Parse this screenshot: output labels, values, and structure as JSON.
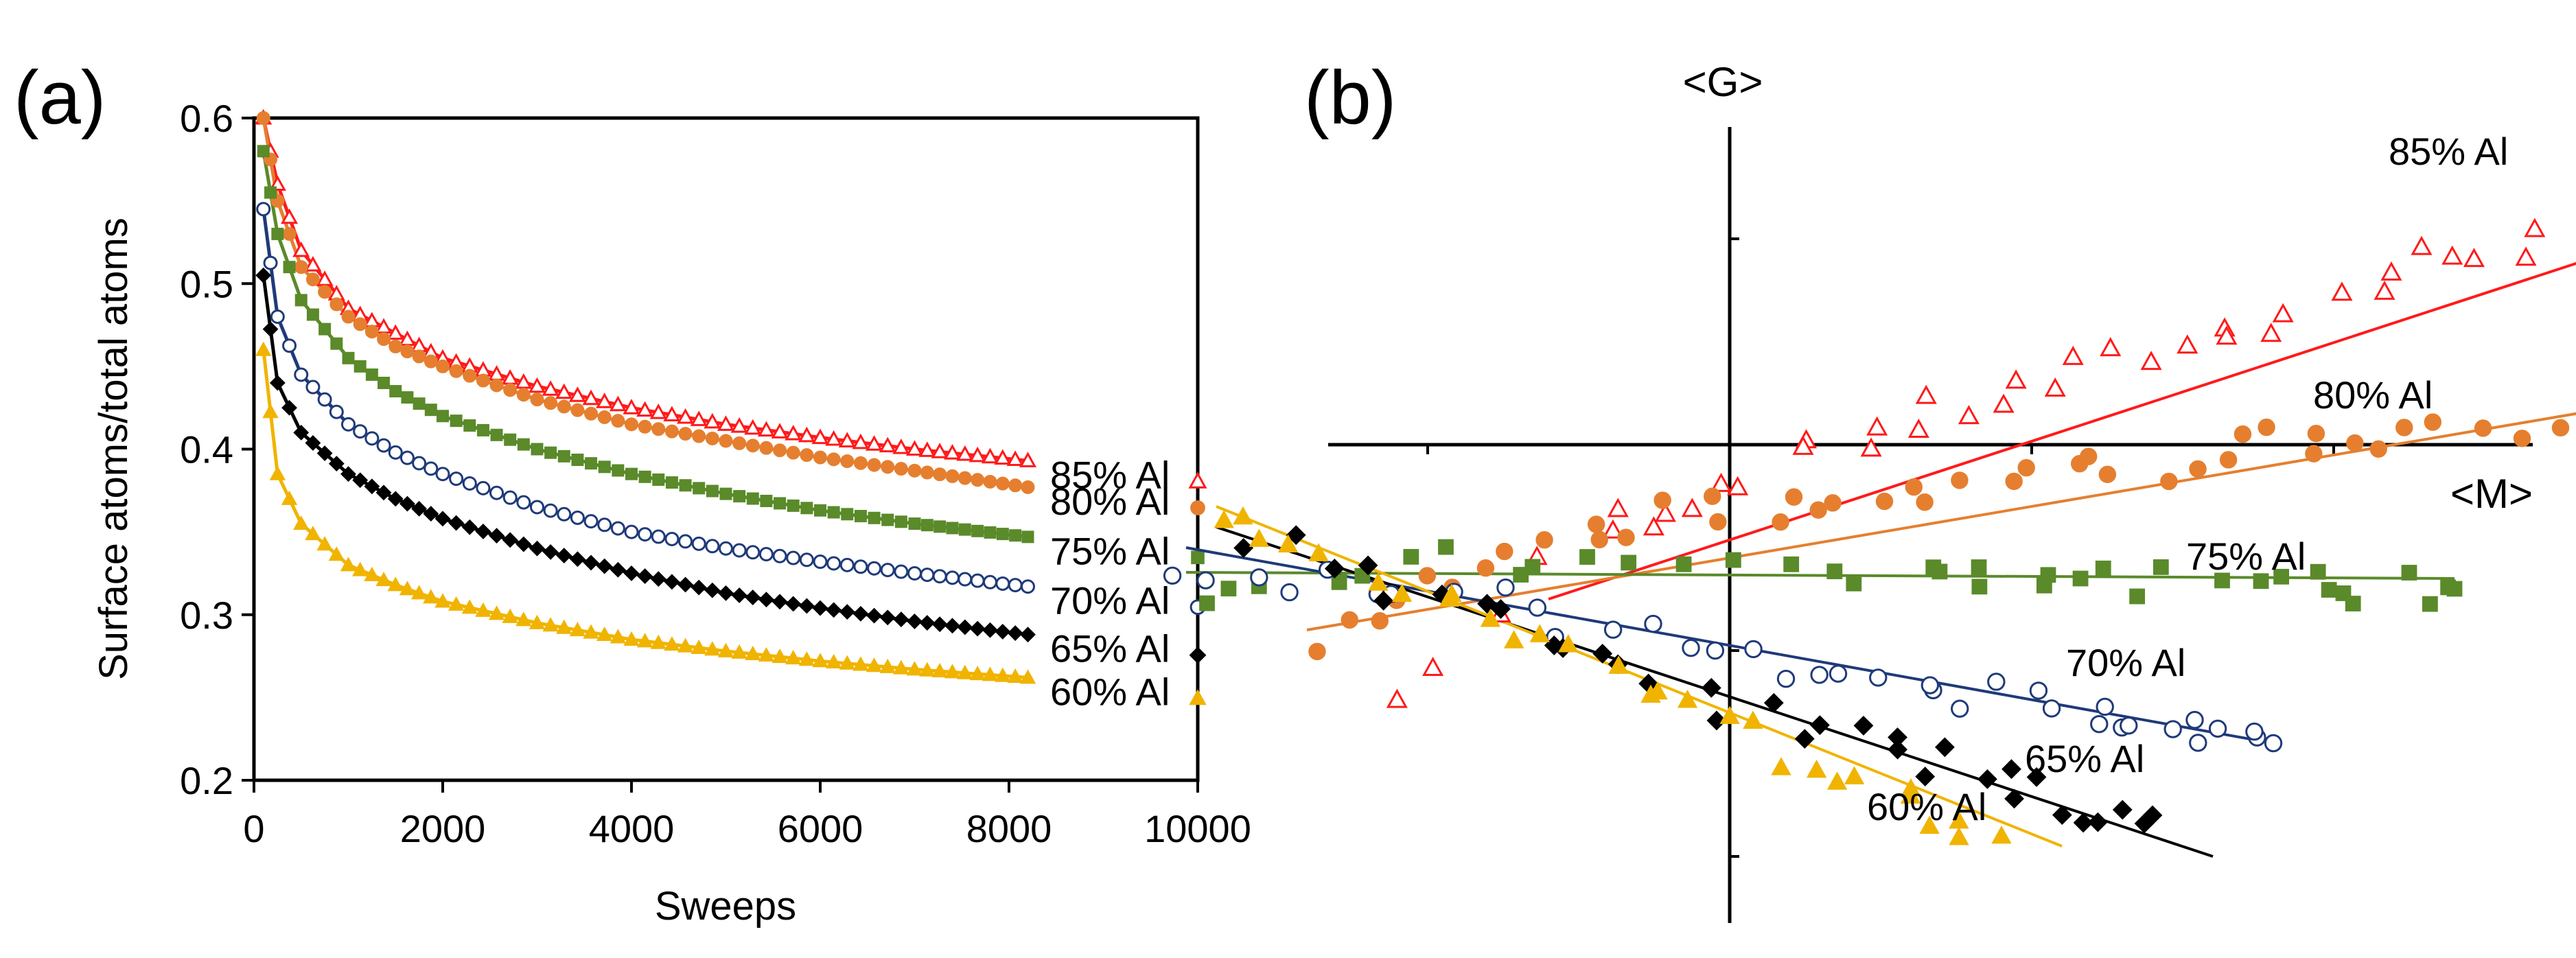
{
  "figure": {
    "panel_a_label": "(a)",
    "panel_b_label": "(b)"
  },
  "chart_data": [
    {
      "id": "a",
      "type": "scatter",
      "title": "",
      "xlabel": "Sweeps",
      "ylabel": "Surface atoms/total atoms",
      "xlim": [
        0,
        10000
      ],
      "ylim": [
        0.2,
        0.6
      ],
      "xticks": [
        "0",
        "2000",
        "4000",
        "6000",
        "8000",
        "10000"
      ],
      "yticks": [
        "0.2",
        "0.3",
        "0.4",
        "0.5",
        "0.6"
      ],
      "grid": false,
      "legend": "right",
      "series": [
        {
          "name": "85% Al",
          "color": "#ff1a1a",
          "marker": "triangle-open",
          "x": [
            100,
            250,
            500,
            1000,
            1500,
            2000,
            3000,
            4000,
            5000,
            6000,
            7000,
            8200
          ],
          "y": [
            0.6,
            0.56,
            0.52,
            0.485,
            0.47,
            0.455,
            0.438,
            0.425,
            0.415,
            0.407,
            0.4,
            0.393
          ]
        },
        {
          "name": "80% Al",
          "color": "#e57f2f",
          "marker": "circle",
          "x": [
            100,
            250,
            500,
            1000,
            1500,
            2000,
            3000,
            4000,
            5000,
            6000,
            7000,
            8200
          ],
          "y": [
            0.6,
            0.55,
            0.51,
            0.48,
            0.462,
            0.45,
            0.43,
            0.415,
            0.405,
            0.395,
            0.387,
            0.377
          ]
        },
        {
          "name": "75% Al",
          "color": "#5a8a2a",
          "marker": "square",
          "x": [
            100,
            250,
            500,
            1000,
            1500,
            2000,
            3000,
            4000,
            5000,
            6000,
            7000,
            8200
          ],
          "y": [
            0.58,
            0.53,
            0.49,
            0.455,
            0.435,
            0.42,
            0.4,
            0.385,
            0.373,
            0.363,
            0.355,
            0.347
          ]
        },
        {
          "name": "70% Al",
          "color": "#1f3a7a",
          "marker": "circle-open",
          "x": [
            100,
            250,
            500,
            1000,
            1500,
            2000,
            3000,
            4000,
            5000,
            6000,
            7000,
            8200
          ],
          "y": [
            0.545,
            0.48,
            0.445,
            0.415,
            0.398,
            0.385,
            0.365,
            0.35,
            0.34,
            0.332,
            0.325,
            0.317
          ]
        },
        {
          "name": "65% Al",
          "color": "#000000",
          "marker": "diamond",
          "x": [
            100,
            250,
            500,
            1000,
            1500,
            2000,
            3000,
            4000,
            5000,
            6000,
            7000,
            8200
          ],
          "y": [
            0.505,
            0.44,
            0.41,
            0.385,
            0.37,
            0.358,
            0.34,
            0.325,
            0.313,
            0.304,
            0.296,
            0.288
          ]
        },
        {
          "name": "60% Al",
          "color": "#f0b400",
          "marker": "triangle",
          "x": [
            100,
            250,
            500,
            1000,
            1500,
            2000,
            3000,
            4000,
            5000,
            6000,
            7000,
            8200
          ],
          "y": [
            0.46,
            0.385,
            0.355,
            0.33,
            0.318,
            0.308,
            0.295,
            0.285,
            0.278,
            0.272,
            0.267,
            0.262
          ]
        }
      ]
    },
    {
      "id": "b",
      "type": "scatter",
      "title": "",
      "xlabel": "<M>",
      "ylabel": "<G>",
      "xlim": [
        -2.2,
        4.5
      ],
      "ylim": [
        -3.0,
        1.9
      ],
      "grid": false,
      "note": "unitless correlation plot; axes cross at origin, no tick labels",
      "series": [
        {
          "name": "85% Al",
          "color": "#ff1a1a",
          "marker": "triangle-open",
          "fit": [
            [
              -0.6,
              -0.75
            ],
            [
              4.2,
              1.55
            ]
          ],
          "x": [
            -1.1,
            -0.4,
            -0.15,
            0.3,
            0.7,
            1.1,
            1.5,
            1.9,
            2.3,
            2.7,
            3.1,
            3.5,
            3.8,
            4.2
          ],
          "y": [
            -1.25,
            -0.4,
            -0.25,
            0.0,
            0.15,
            0.3,
            0.5,
            0.65,
            0.9,
            1.0,
            1.1,
            1.3,
            1.45,
            1.55
          ]
        },
        {
          "name": "80% Al",
          "color": "#e57f2f",
          "marker": "circle",
          "fit": [
            [
              -1.4,
              -0.9
            ],
            [
              3.0,
              0.2
            ]
          ],
          "x": [
            -1.4,
            -1.0,
            -0.6,
            -0.2,
            0.2,
            0.6,
            1.0,
            1.4,
            1.8,
            2.2,
            2.6,
            3.0
          ],
          "y": [
            -1.0,
            -0.7,
            -0.5,
            -0.35,
            -0.3,
            -0.25,
            -0.15,
            -0.1,
            0.0,
            0.05,
            0.1,
            0.12
          ]
        },
        {
          "name": "75% Al",
          "color": "#5a8a2a",
          "marker": "square",
          "fit": [
            [
              -1.8,
              -0.62
            ],
            [
              2.4,
              -0.65
            ]
          ],
          "x": [
            -1.8,
            -1.2,
            -0.6,
            0.0,
            0.6,
            1.0,
            1.4,
            1.8,
            2.1,
            2.4
          ],
          "y": [
            -0.75,
            -0.6,
            -0.55,
            -0.55,
            -0.6,
            -0.62,
            -0.65,
            -0.68,
            -0.7,
            -0.7
          ]
        },
        {
          "name": "70% Al",
          "color": "#1f3a7a",
          "marker": "circle-open",
          "fit": [
            [
              -1.8,
              -0.5
            ],
            [
              1.8,
              -1.45
            ]
          ],
          "x": [
            -1.8,
            -1.3,
            -0.8,
            -0.3,
            0.2,
            0.6,
            1.0,
            1.3,
            1.6,
            1.8
          ],
          "y": [
            -0.6,
            -0.65,
            -0.75,
            -0.95,
            -1.1,
            -1.2,
            -1.25,
            -1.35,
            -1.4,
            -1.45
          ]
        },
        {
          "name": "65% Al",
          "color": "#000000",
          "marker": "diamond",
          "fit": [
            [
              -1.7,
              -0.4
            ],
            [
              1.6,
              -2.0
            ]
          ],
          "x": [
            -1.6,
            -1.1,
            -0.6,
            -0.2,
            0.2,
            0.6,
            0.9,
            1.2,
            1.4
          ],
          "y": [
            -0.45,
            -0.7,
            -0.95,
            -1.15,
            -1.35,
            -1.5,
            -1.6,
            -1.75,
            -1.8
          ]
        },
        {
          "name": "60% Al",
          "color": "#f0b400",
          "marker": "triangle",
          "fit": [
            [
              -1.7,
              -0.3
            ],
            [
              1.1,
              -1.95
            ]
          ],
          "x": [
            -1.7,
            -1.3,
            -0.9,
            -0.5,
            -0.1,
            0.3,
            0.6,
            0.9
          ],
          "y": [
            -0.3,
            -0.55,
            -0.8,
            -1.05,
            -1.3,
            -1.55,
            -1.75,
            -1.9
          ]
        }
      ]
    }
  ]
}
